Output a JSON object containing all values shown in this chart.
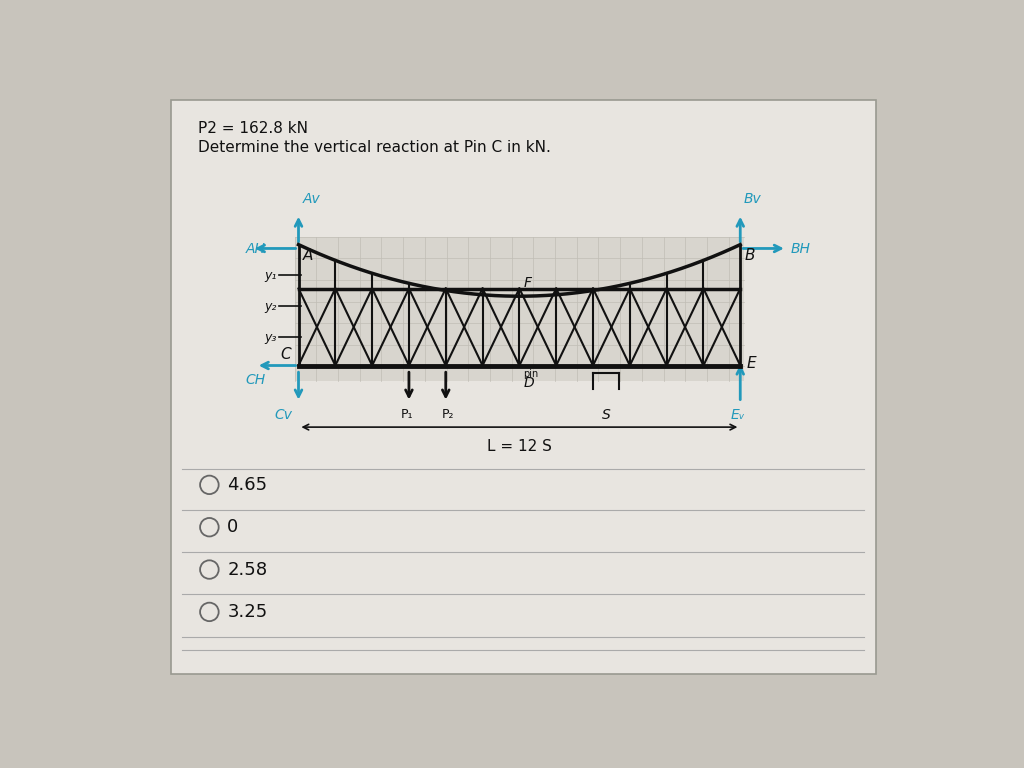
{
  "title_line1": "P2 = 162.8 kN",
  "title_line2": "Determine the vertical reaction at Pin C in kN.",
  "bg_color": "#c8c4bc",
  "card_color": "#e8e5e0",
  "text_color": "#111111",
  "cyan_color": "#2299bb",
  "choices": [
    "4.65",
    "0",
    "2.58",
    "3.25"
  ],
  "truss_color": "#111111",
  "L_label": "L = 12 S",
  "grid_color": "#c0bdb5"
}
